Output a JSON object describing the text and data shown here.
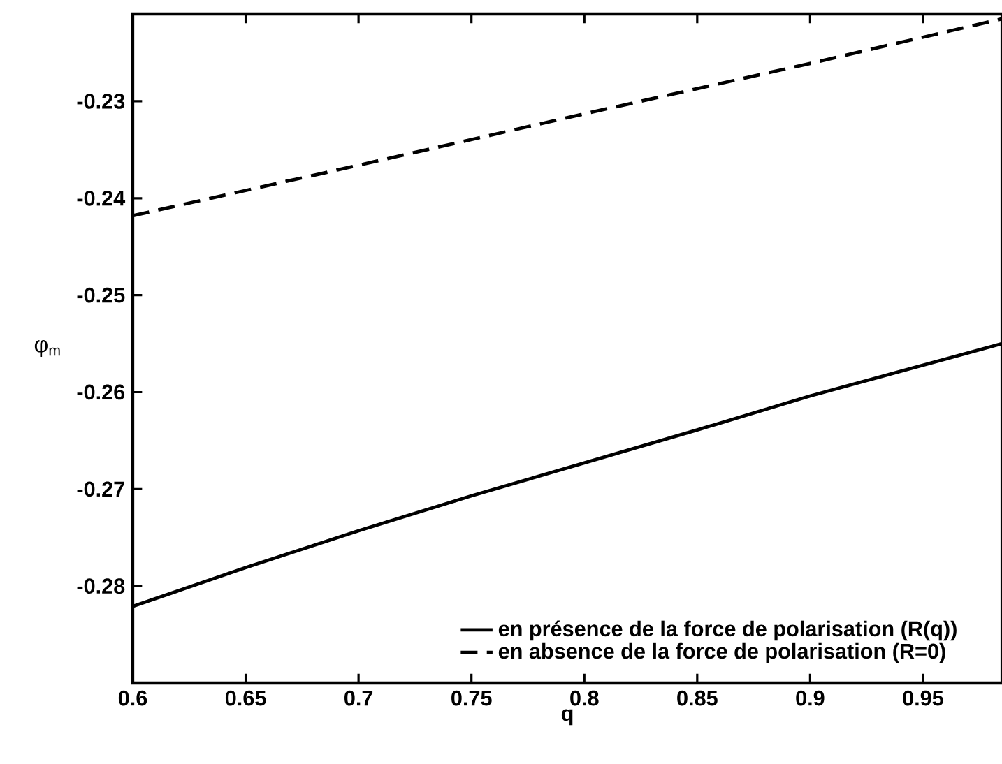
{
  "chart_data": {
    "type": "line",
    "xlabel": "q",
    "ylabel": "φ$_{m}$",
    "xlim": [
      0.6,
      0.985
    ],
    "ylim": [
      -0.29,
      -0.221
    ],
    "xticks": [
      0.6,
      0.65,
      0.7,
      0.75,
      0.8,
      0.85,
      0.9,
      0.95
    ],
    "yticks": [
      -0.28,
      -0.27,
      -0.26,
      -0.25,
      -0.24,
      -0.23
    ],
    "grid": false,
    "legend": "bottom right",
    "marker": "none",
    "series": [
      {
        "name": "en présence de la force de polarisation (R(q))",
        "color": "#000000",
        "line_style": "solid",
        "x": [
          0.6,
          0.65,
          0.7,
          0.75,
          0.8,
          0.85,
          0.9,
          0.985
        ],
        "values": [
          -0.2821,
          -0.2781,
          -0.2743,
          -0.2707,
          -0.2673,
          -0.2639,
          -0.2604,
          -0.255
        ]
      },
      {
        "name": "en absence de la force de polarisation (R=0)",
        "color": "#000000",
        "line_style": "dashed",
        "x": [
          0.6,
          0.7,
          0.8,
          0.9,
          0.985
        ],
        "values": [
          -0.2418,
          -0.2366,
          -0.2313,
          -0.2261,
          -0.2215
        ]
      }
    ]
  }
}
